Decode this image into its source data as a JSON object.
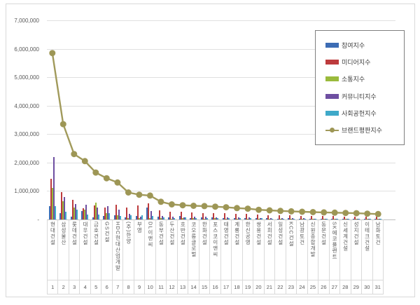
{
  "chart_data": {
    "type": "bar+line",
    "title": "",
    "categories": [
      "현대건설",
      "삼성물산",
      "롯데건설",
      "대우건설",
      "금호건설",
      "GS건설",
      "HDC현대산업개발",
      "(주)한양",
      "부영",
      "DL이앤씨",
      "동부건설",
      "두산건설",
      "호반건설",
      "코오롱글로벌",
      "한화건설",
      "포스코이앤씨",
      "태영건설",
      "계룡건설",
      "한신공영",
      "쌍용건설",
      "서희건설",
      "일성건설",
      "KCC건설",
      "남광토건",
      "신원종합개발",
      "동문건설",
      "SK에코플랜트",
      "신세계건설",
      "성지건설",
      "이테크건설",
      "남화토건"
    ],
    "ranks": [
      "1",
      "2",
      "3",
      "4",
      "5",
      "6",
      "7",
      "8",
      "9",
      "10",
      "11",
      "12",
      "13",
      "14",
      "15",
      "16",
      "17",
      "18",
      "19",
      "20",
      "21",
      "22",
      "23",
      "24",
      "25",
      "26",
      "27",
      "28",
      "29",
      "30",
      "31"
    ],
    "series": [
      {
        "name": "참여지수",
        "type": "bar",
        "color": "#3c6cb4",
        "values": [
          480000,
          210000,
          110000,
          300000,
          70000,
          130000,
          150000,
          70000,
          130000,
          420000,
          90000,
          70000,
          120000,
          60000,
          70000,
          80000,
          60000,
          50000,
          50000,
          40000,
          40000,
          30000,
          40000,
          30000,
          30000,
          25000,
          30000,
          25000,
          20000,
          20000,
          15000
        ]
      },
      {
        "name": "미디어지수",
        "type": "bar",
        "color": "#bd3b3d",
        "values": [
          1430000,
          970000,
          690000,
          400000,
          490000,
          420000,
          520000,
          430000,
          500000,
          560000,
          330000,
          280000,
          260000,
          250000,
          230000,
          220000,
          210000,
          200000,
          190000,
          175000,
          160000,
          150000,
          140000,
          130000,
          125000,
          120000,
          115000,
          110000,
          105000,
          95000,
          90000
        ]
      },
      {
        "name": "소통지수",
        "type": "bar",
        "color": "#9aba3c",
        "values": [
          1100000,
          640000,
          430000,
          350000,
          580000,
          210000,
          140000,
          50000,
          40000,
          60000,
          40000,
          30000,
          50000,
          40000,
          30000,
          40000,
          30000,
          30000,
          20000,
          20000,
          20000,
          20000,
          15000,
          15000,
          15000,
          10000,
          10000,
          10000,
          10000,
          10000,
          10000
        ]
      },
      {
        "name": "커뮤니티지수",
        "type": "bar",
        "color": "#6e4fa1",
        "values": [
          2200000,
          800000,
          550000,
          510000,
          430000,
          480000,
          350000,
          200000,
          90000,
          300000,
          120000,
          100000,
          80000,
          100000,
          90000,
          70000,
          80000,
          70000,
          70000,
          60000,
          50000,
          50000,
          40000,
          40000,
          35000,
          35000,
          30000,
          30000,
          25000,
          25000,
          20000
        ]
      },
      {
        "name": "사회공헌지수",
        "type": "bar",
        "color": "#3fa9c9",
        "values": [
          480000,
          280000,
          340000,
          180000,
          170000,
          230000,
          130000,
          150000,
          140000,
          120000,
          80000,
          60000,
          70000,
          60000,
          50000,
          50000,
          50000,
          40000,
          40000,
          40000,
          30000,
          30000,
          30000,
          25000,
          25000,
          25000,
          20000,
          20000,
          20000,
          15000,
          15000
        ]
      },
      {
        "name": "브랜드평판지수",
        "type": "line",
        "color": "#a19a5b",
        "marker_color": "#9d9655",
        "values": [
          5850000,
          3350000,
          2300000,
          2050000,
          1650000,
          1450000,
          1300000,
          950000,
          870000,
          840000,
          620000,
          530000,
          500000,
          480000,
          470000,
          450000,
          430000,
          400000,
          380000,
          340000,
          320000,
          300000,
          285000,
          270000,
          260000,
          250000,
          240000,
          230000,
          220000,
          205000,
          190000
        ]
      }
    ],
    "y_axis": {
      "min": 0,
      "max": 7000000,
      "tick_interval": 1000000,
      "tick_labels": [
        "-",
        "1,000,000",
        "2,000,000",
        "3,000,000",
        "4,000,000",
        "5,000,000",
        "6,000,000",
        "7,000,000"
      ]
    },
    "legend_position": "inside-right",
    "grid": true
  }
}
